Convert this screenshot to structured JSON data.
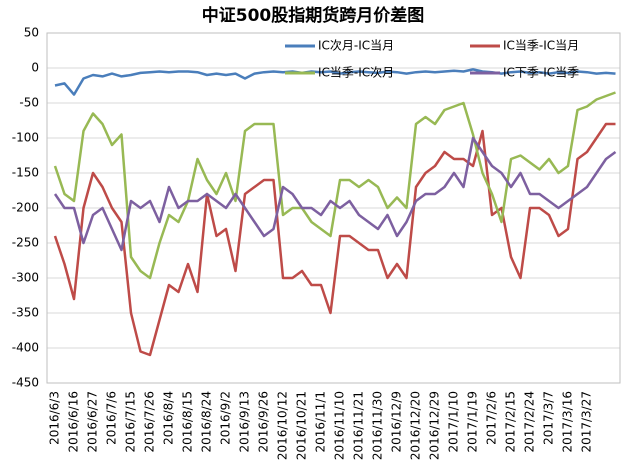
{
  "chart_data": {
    "type": "line",
    "title": "中证500股指期货跨月价差图",
    "categories": [
      "2016/6/3",
      null,
      "2016/6/16",
      null,
      "2016/6/27",
      null,
      "2016/7/6",
      null,
      "2016/7/15",
      null,
      "2016/7/26",
      null,
      "2016/8/4",
      null,
      "2016/8/15",
      null,
      "2016/8/24",
      null,
      "2016/9/2",
      null,
      "2016/9/13",
      null,
      "2016/9/26",
      null,
      "2016/10/12",
      null,
      "2016/10/21",
      null,
      "2016/11/1",
      null,
      "2016/11/10",
      null,
      "2016/11/21",
      null,
      "2016/11/30",
      null,
      "2016/12/9",
      null,
      "2016/12/20",
      null,
      "2016/12/29",
      null,
      "2017/1/10",
      null,
      "2017/1/19",
      null,
      "2017/2/6",
      null,
      "2017/2/15",
      null,
      "2017/2/24",
      null,
      "2017/3/7",
      null,
      "2017/3/16",
      null,
      "2017/3/27",
      null,
      null,
      null
    ],
    "series": [
      {
        "name": "IC次月-IC当月",
        "color": "#4a7ebb",
        "values": [
          -25,
          -22,
          -38,
          -15,
          -10,
          -12,
          -8,
          -12,
          -10,
          -7,
          -6,
          -5,
          -6,
          -5,
          -5,
          -6,
          -10,
          -8,
          -10,
          -8,
          -15,
          -8,
          -6,
          -5,
          -6,
          -5,
          -7,
          -5,
          -6,
          -5,
          -8,
          -6,
          -5,
          -6,
          -7,
          -5,
          -6,
          -8,
          -6,
          -5,
          -6,
          -5,
          -4,
          -5,
          -2,
          -5,
          -6,
          -8,
          -6,
          -5,
          -7,
          -6,
          -8,
          -6,
          -7,
          -5,
          -6,
          -8,
          -7,
          -8
        ]
      },
      {
        "name": "IC当季-IC当月",
        "color": "#be4b48",
        "values": [
          -240,
          -280,
          -330,
          -200,
          -150,
          -170,
          -200,
          -220,
          -350,
          -405,
          -410,
          -360,
          -310,
          -320,
          -280,
          -320,
          -180,
          -240,
          -230,
          -290,
          -180,
          -170,
          -160,
          -160,
          -300,
          -300,
          -290,
          -310,
          -310,
          -350,
          -240,
          -240,
          -250,
          -260,
          -260,
          -300,
          -280,
          -300,
          -170,
          -150,
          -140,
          -120,
          -130,
          -130,
          -140,
          -90,
          -210,
          -200,
          -270,
          -300,
          -200,
          -200,
          -210,
          -240,
          -230,
          -130,
          -120,
          -100,
          -80,
          -80
        ]
      },
      {
        "name": "IC当季-IC次月",
        "color": "#98b954",
        "values": [
          -140,
          -180,
          -190,
          -90,
          -65,
          -80,
          -110,
          -95,
          -270,
          -290,
          -300,
          -250,
          -210,
          -220,
          -190,
          -130,
          -160,
          -180,
          -150,
          -190,
          -90,
          -80,
          -80,
          -80,
          -210,
          -200,
          -200,
          -220,
          -230,
          -240,
          -160,
          -160,
          -170,
          -160,
          -170,
          -200,
          -185,
          -200,
          -80,
          -70,
          -80,
          -60,
          -55,
          -50,
          -95,
          -150,
          -180,
          -220,
          -130,
          -125,
          -135,
          -145,
          -130,
          -150,
          -140,
          -60,
          -55,
          -45,
          -40,
          -35
        ]
      },
      {
        "name": "IC下季-IC当季",
        "color": "#7d60a0",
        "values": [
          -180,
          -200,
          -200,
          -250,
          -210,
          -200,
          -230,
          -260,
          -190,
          -200,
          -190,
          -220,
          -170,
          -200,
          -190,
          -190,
          -180,
          -190,
          -200,
          -180,
          -200,
          -220,
          -240,
          -230,
          -170,
          -180,
          -200,
          -200,
          -210,
          -190,
          -200,
          -190,
          -210,
          -220,
          -230,
          -210,
          -240,
          -220,
          -190,
          -180,
          -180,
          -170,
          -150,
          -170,
          -100,
          -120,
          -140,
          -150,
          -170,
          -150,
          -180,
          -180,
          -190,
          -200,
          -190,
          -180,
          -170,
          -150,
          -130,
          -120
        ]
      }
    ],
    "ylim": [
      -450,
      50
    ],
    "yticks": [
      50,
      0,
      -50,
      -100,
      -150,
      -200,
      -250,
      -300,
      -350,
      -400,
      -450
    ],
    "grid": true
  }
}
